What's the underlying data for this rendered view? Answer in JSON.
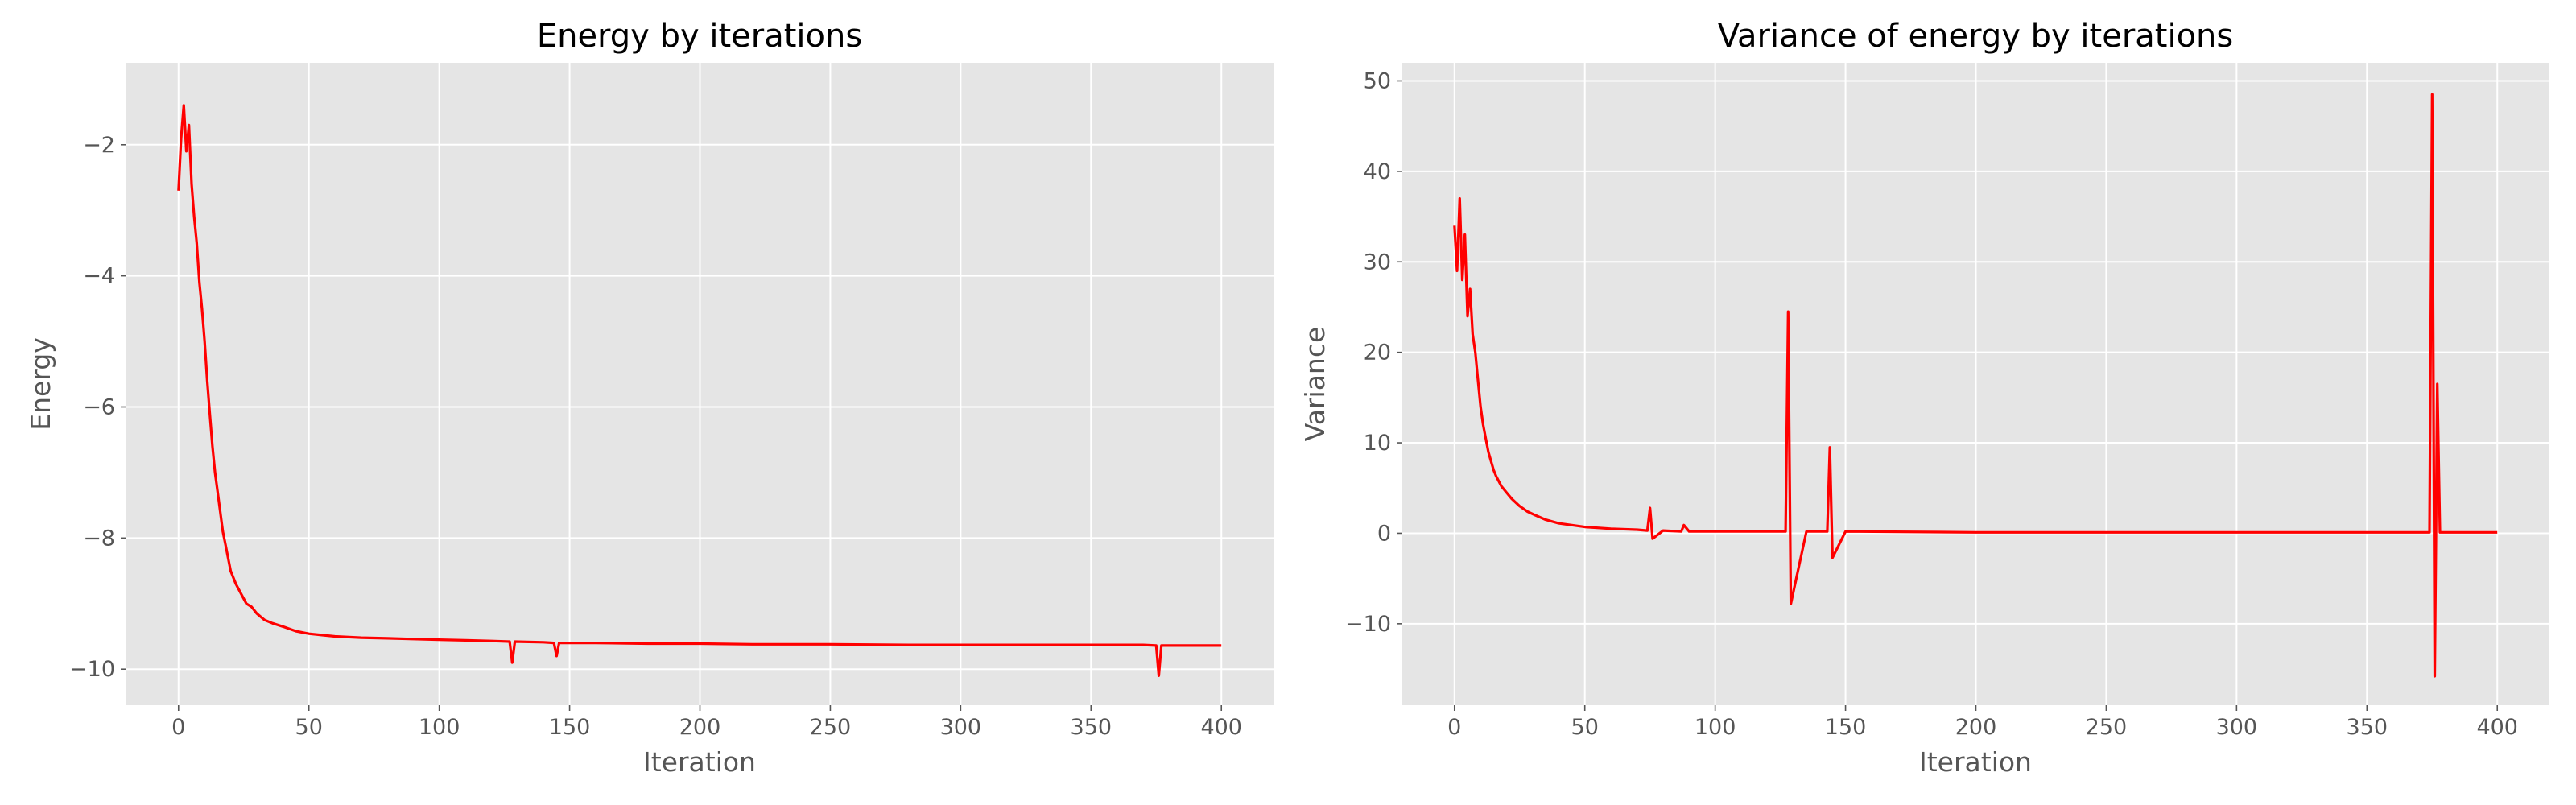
{
  "chart_data": [
    {
      "type": "line",
      "title": "Energy by iterations",
      "xlabel": "Iteration",
      "ylabel": "Energy",
      "xlim": [
        -20,
        420
      ],
      "ylim": [
        -10.55,
        -0.75
      ],
      "xticks": [
        0,
        50,
        100,
        150,
        200,
        250,
        300,
        350,
        400
      ],
      "yticks": [
        -10,
        -8,
        -6,
        -4,
        -2
      ],
      "grid": true,
      "line_color": "#ff0000",
      "series": [
        {
          "x": [
            0,
            1,
            2,
            3,
            4,
            5,
            6,
            7,
            8,
            9,
            10,
            11,
            12,
            13,
            14,
            15,
            16,
            17,
            18,
            19,
            20,
            22,
            24,
            26,
            28,
            30,
            33,
            36,
            40,
            45,
            50,
            55,
            60,
            70,
            80,
            90,
            100,
            110,
            120,
            127,
            128,
            129,
            140,
            144,
            145,
            146,
            160,
            180,
            200,
            220,
            250,
            280,
            300,
            320,
            350,
            370,
            375,
            376,
            377,
            380,
            400
          ],
          "y": [
            -2.7,
            -1.9,
            -1.4,
            -2.1,
            -1.7,
            -2.6,
            -3.1,
            -3.5,
            -4.1,
            -4.5,
            -5.0,
            -5.6,
            -6.1,
            -6.6,
            -7.0,
            -7.3,
            -7.6,
            -7.9,
            -8.1,
            -8.3,
            -8.5,
            -8.7,
            -8.85,
            -9.0,
            -9.05,
            -9.15,
            -9.25,
            -9.3,
            -9.35,
            -9.42,
            -9.46,
            -9.48,
            -9.5,
            -9.52,
            -9.53,
            -9.54,
            -9.55,
            -9.56,
            -9.57,
            -9.58,
            -9.9,
            -9.58,
            -9.59,
            -9.6,
            -9.8,
            -9.6,
            -9.6,
            -9.61,
            -9.61,
            -9.62,
            -9.62,
            -9.63,
            -9.63,
            -9.63,
            -9.63,
            -9.63,
            -9.64,
            -10.1,
            -9.64,
            -9.64,
            -9.64
          ]
        }
      ]
    },
    {
      "type": "line",
      "title": "Variance of energy by iterations",
      "xlabel": "Iteration",
      "ylabel": "Variance",
      "xlim": [
        -20,
        420
      ],
      "ylim": [
        -19,
        52
      ],
      "xticks": [
        0,
        50,
        100,
        150,
        200,
        250,
        300,
        350,
        400
      ],
      "yticks": [
        -10,
        0,
        10,
        20,
        30,
        40,
        50
      ],
      "grid": true,
      "line_color": "#ff0000",
      "series": [
        {
          "x": [
            0,
            1,
            2,
            3,
            4,
            5,
            6,
            7,
            8,
            9,
            10,
            11,
            12,
            13,
            14,
            15,
            16,
            18,
            20,
            22,
            25,
            28,
            31,
            35,
            40,
            45,
            50,
            60,
            70,
            74,
            75,
            76,
            80,
            87,
            88,
            90,
            100,
            110,
            120,
            127,
            128,
            129,
            135,
            143,
            144,
            145,
            150,
            200,
            250,
            300,
            350,
            374,
            375,
            376,
            377,
            378,
            390,
            400
          ],
          "y": [
            34,
            29,
            37,
            28,
            33,
            24,
            27,
            22,
            20,
            17,
            14,
            12,
            10.5,
            9,
            8,
            7,
            6.3,
            5.2,
            4.5,
            3.8,
            3.0,
            2.4,
            2.0,
            1.5,
            1.1,
            0.9,
            0.7,
            0.5,
            0.4,
            0.3,
            2.8,
            -0.6,
            0.3,
            0.2,
            0.9,
            0.2,
            0.2,
            0.2,
            0.2,
            0.2,
            24.5,
            -7.8,
            0.2,
            0.2,
            9.5,
            -2.7,
            0.2,
            0.1,
            0.1,
            0.1,
            0.1,
            0.1,
            48.5,
            -15.8,
            16.5,
            0.1,
            0.1,
            0.1
          ]
        }
      ]
    }
  ]
}
